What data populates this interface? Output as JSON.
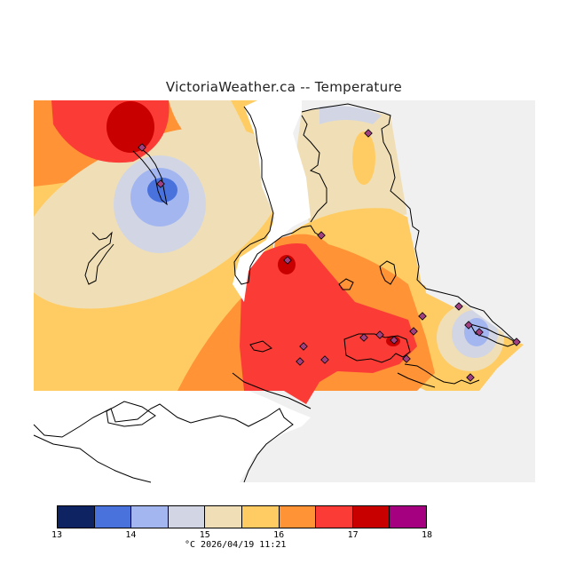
{
  "title": "VictoriaWeather.ca -- Temperature",
  "caption": "°C  2026/04/19 11:21",
  "legend": {
    "colors": [
      "#0e2462",
      "#4a72dc",
      "#a4b6f0",
      "#d2d6e4",
      "#f0dfb6",
      "#ffcc63",
      "#ff9336",
      "#fb3c36",
      "#c90000",
      "#a40080"
    ],
    "ticks": [
      "13",
      "14",
      "15",
      "16",
      "17",
      "18"
    ]
  },
  "map": {
    "unit": "°C",
    "color_scale": {
      "min": 13,
      "max": 18,
      "step": 0.5
    },
    "land_color": "#f0f0f0",
    "ocean_color": "#ffffff",
    "stations_marker_color": "#a04080"
  }
}
